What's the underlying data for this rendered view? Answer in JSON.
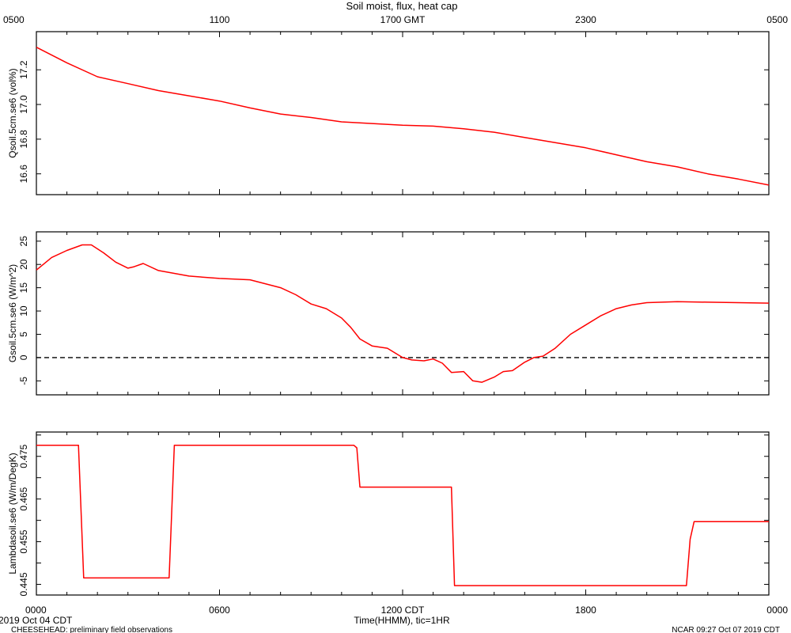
{
  "title": "Soil moist, flux, heat cap",
  "top_axis": {
    "ticks": [
      "0500",
      "1100",
      "1700 GMT",
      "2300",
      "0500"
    ]
  },
  "bottom_axis": {
    "ticks": [
      "0000",
      "0600",
      "1200 CDT",
      "1800",
      "0000"
    ],
    "label": "Time(HHMM), tic=1HR",
    "date_label": "2019 Oct 04 CDT"
  },
  "footer": {
    "left": "CHEESEHEAD: preliminary field observations",
    "right": "NCAR 09:27 Oct 07 2019 CDT"
  },
  "colors": {
    "line": "#ff0000",
    "axis": "#000000",
    "background": "#ffffff"
  },
  "chart_data": [
    {
      "type": "line",
      "ylabel": "Qsoil.5cm.se6 (vol%)",
      "ylim": [
        16.48,
        17.42
      ],
      "yticks": [
        16.6,
        16.8,
        17.0,
        17.2
      ],
      "ytick_labels": [
        "16.6",
        "16.8",
        "17.0",
        "17.2"
      ],
      "xlim": [
        0,
        24
      ],
      "series": [
        {
          "x": [
            0,
            1,
            2,
            3,
            4,
            5,
            6,
            7,
            8,
            9,
            10,
            11,
            12,
            13,
            14,
            15,
            16,
            17,
            18,
            19,
            20,
            21,
            22,
            23,
            24
          ],
          "values": [
            17.33,
            17.24,
            17.16,
            17.12,
            17.08,
            17.05,
            17.02,
            16.98,
            16.945,
            16.925,
            16.9,
            16.89,
            16.88,
            16.875,
            16.86,
            16.84,
            16.81,
            16.78,
            16.75,
            16.71,
            16.67,
            16.64,
            16.6,
            16.57,
            16.535
          ]
        }
      ]
    },
    {
      "type": "line",
      "ylabel": "Gsoil.5cm.se6 (W/m^2)",
      "ylim": [
        -8,
        27
      ],
      "yticks": [
        -5,
        0,
        5,
        10,
        15,
        20,
        25
      ],
      "ytick_labels": [
        "-5",
        "0",
        "5",
        "10",
        "15",
        "20",
        "25"
      ],
      "xlim": [
        0,
        24
      ],
      "reference_line": 0,
      "series": [
        {
          "x": [
            0,
            0.5,
            1,
            1.5,
            1.8,
            2.2,
            2.6,
            3,
            3.2,
            3.5,
            4,
            5,
            6,
            7,
            8,
            8.5,
            9,
            9.5,
            10,
            10.3,
            10.6,
            11,
            11.5,
            12,
            12.3,
            12.7,
            13,
            13.3,
            13.6,
            14,
            14.3,
            14.6,
            15,
            15.3,
            15.6,
            16,
            16.3,
            16.6,
            17,
            17.5,
            18,
            18.5,
            19,
            19.5,
            20,
            21,
            22,
            23,
            24
          ],
          "values": [
            18.8,
            21.5,
            23.0,
            24.2,
            24.2,
            22.5,
            20.5,
            19.2,
            19.5,
            20.2,
            18.7,
            17.5,
            17.0,
            16.7,
            15.0,
            13.5,
            11.5,
            10.5,
            8.5,
            6.5,
            4.0,
            2.5,
            2.0,
            0.0,
            -0.5,
            -0.7,
            -0.3,
            -1.2,
            -3.2,
            -3.0,
            -5.0,
            -5.3,
            -4.2,
            -3.0,
            -2.8,
            -1.0,
            0.0,
            0.3,
            2.0,
            5.0,
            7.0,
            9.0,
            10.5,
            11.3,
            11.8,
            12.0,
            11.9,
            11.8,
            11.7
          ]
        }
      ]
    },
    {
      "type": "line",
      "ylabel": "Lambdasoil.se6 (W/m/DegK)",
      "ylim": [
        0.4425,
        0.4807
      ],
      "yticks": [
        0.445,
        0.45,
        0.455,
        0.46,
        0.465,
        0.47,
        0.475,
        0.48
      ],
      "ytick_labels": [
        "0.445",
        "",
        "0.455",
        "",
        "0.465",
        "",
        "0.475",
        ""
      ],
      "xlim": [
        0,
        24
      ],
      "series": [
        {
          "x": [
            0,
            1.38,
            1.55,
            4.35,
            4.52,
            10.4,
            10.5,
            10.6,
            13.6,
            13.7,
            21.3,
            21.42,
            21.55,
            24
          ],
          "values": [
            0.4776,
            0.4776,
            0.4465,
            0.4465,
            0.4776,
            0.4776,
            0.477,
            0.4678,
            0.4678,
            0.4447,
            0.4447,
            0.4556,
            0.4597,
            0.4597
          ]
        }
      ]
    }
  ]
}
